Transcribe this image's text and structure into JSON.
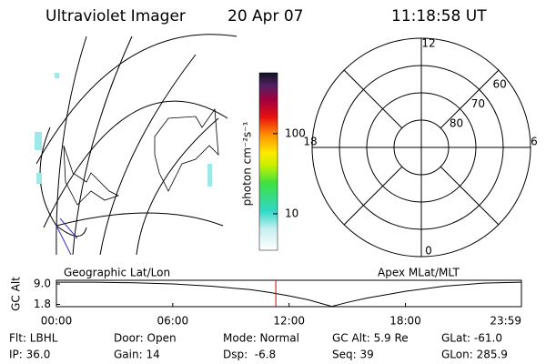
{
  "header": {
    "title": "Ultraviolet Imager",
    "date": "20 Apr 07",
    "time": "11:18:58 UT"
  },
  "panels": {
    "left_label": "Geographic Lat/Lon",
    "right_label": "Apex MLat/MLT"
  },
  "colorbar": {
    "label": "photon cm⁻²s⁻¹",
    "log_scale": true,
    "lim": [
      3.5,
      575
    ],
    "ticks": [
      10,
      100
    ]
  },
  "polar": {
    "rlim": [
      90,
      50
    ],
    "rings": [
      80,
      70,
      60,
      50
    ],
    "ring_labels": [
      80,
      70,
      60
    ],
    "hours": [
      0,
      6,
      12,
      18
    ]
  },
  "chart_data": {
    "type": "line",
    "ylabel": "GC Alt",
    "x": [
      0,
      2,
      4,
      6,
      8,
      10,
      11,
      12,
      13,
      14.2,
      15,
      16,
      18,
      20,
      22,
      23.98
    ],
    "values": [
      9.6,
      9.6,
      9.4,
      9.0,
      8.2,
      7.0,
      6.0,
      4.8,
      3.4,
      1.1,
      2.5,
      4.0,
      6.4,
      8.2,
      9.3,
      9.6
    ],
    "color": "#000000",
    "xlim": [
      0,
      23.983
    ],
    "xticks": [
      {
        "value": 0,
        "label": "00:00"
      },
      {
        "value": 6,
        "label": "06:00"
      },
      {
        "value": 12,
        "label": "12:00"
      },
      {
        "value": 18,
        "label": "18:00"
      },
      {
        "value": 23.983,
        "label": "23:59"
      }
    ],
    "ylim": [
      1.0,
      10.3
    ],
    "yticks": [
      {
        "value": 9,
        "label": "9.0"
      },
      1.8
    ],
    "marker_time": 11.316,
    "marker_color": "#e00000"
  },
  "info": {
    "rows": [
      [
        "Flt: LBHL",
        "Door: Open",
        "Mode: Normal",
        "GC Alt: 5.9 Re",
        "GLat: -61.0"
      ],
      [
        "IP: 36.0",
        "Gain: 14",
        "Dsp:  -6.8",
        "Seq: 39",
        "GLon: 285.9"
      ]
    ]
  }
}
